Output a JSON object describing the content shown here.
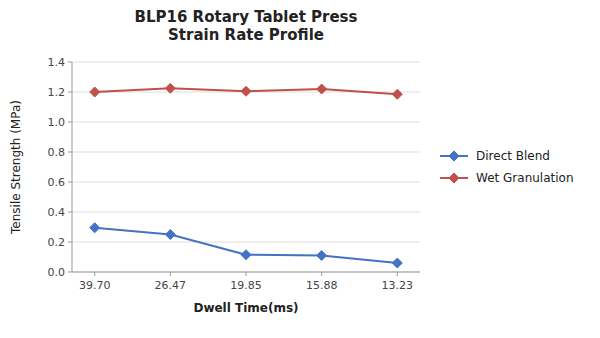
{
  "chart_data": {
    "type": "line",
    "title": "BLP16 Rotary Tablet Press\nStrain Rate Profile",
    "x_label": "Dwell Time(ms)",
    "y_label": "Tensile Strength (MPa)",
    "categories": [
      "39.70",
      "26.47",
      "19.85",
      "15.88",
      "13.23"
    ],
    "series": [
      {
        "name": "Direct Blend",
        "color": "#4472C4",
        "marker": "diamond",
        "values": [
          0.295,
          0.25,
          0.115,
          0.11,
          0.06
        ]
      },
      {
        "name": "Wet Granulation",
        "color": "#C0504D",
        "marker": "diamond",
        "values": [
          1.2,
          1.225,
          1.205,
          1.22,
          1.185
        ]
      }
    ],
    "ylim": [
      0,
      1.4
    ],
    "yticks": [
      {
        "value": 0,
        "label": "0.0"
      },
      0.2,
      0.4,
      0.6,
      0.8,
      {
        "value": 1,
        "label": "1.0"
      },
      1.2,
      1.4
    ],
    "grid": true,
    "legend": "right"
  }
}
